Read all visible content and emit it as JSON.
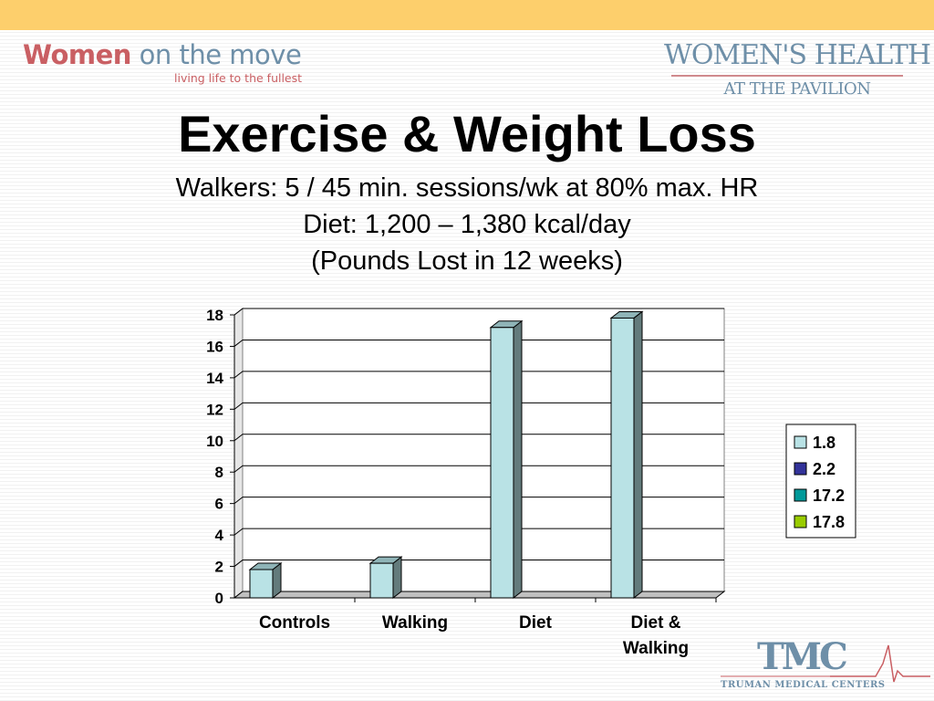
{
  "branding": {
    "left_name_1": "Women",
    "left_name_2": "on the move",
    "left_tagline": "living life to the fullest",
    "right_line_1": "WOMEN'S HEALTH",
    "right_line_2": "AT THE PAVILION",
    "footer_logo": "TMC",
    "footer_name": "TRUMAN MEDICAL CENTERS"
  },
  "slide": {
    "title": "Exercise & Weight Loss",
    "subtitle_lines": [
      "Walkers: 5 / 45 min. sessions/wk at 80% max. HR",
      "Diet: 1,200 – 1,380 kcal/day",
      "(Pounds Lost in 12 weeks)"
    ]
  },
  "colors": {
    "top_bar": "#fdcf6c",
    "bar_face": "#b9e2e5",
    "bar_side": "#637b7c"
  },
  "chart_data": {
    "type": "bar",
    "style": "3d-column",
    "categories": [
      "Controls",
      "Walking",
      "Diet",
      "Diet & Walking"
    ],
    "values": [
      1.8,
      2.2,
      17.2,
      17.8
    ],
    "ylim": [
      0,
      18
    ],
    "yticks": [
      0,
      2,
      4,
      6,
      8,
      10,
      12,
      14,
      16,
      18
    ],
    "grid": true,
    "legend_position": "right",
    "legend": [
      {
        "label": "1.8",
        "color": "#b9e2e5"
      },
      {
        "label": "2.2",
        "color": "#33339a"
      },
      {
        "label": "17.2",
        "color": "#009999"
      },
      {
        "label": "17.8",
        "color": "#99cc00"
      }
    ]
  }
}
